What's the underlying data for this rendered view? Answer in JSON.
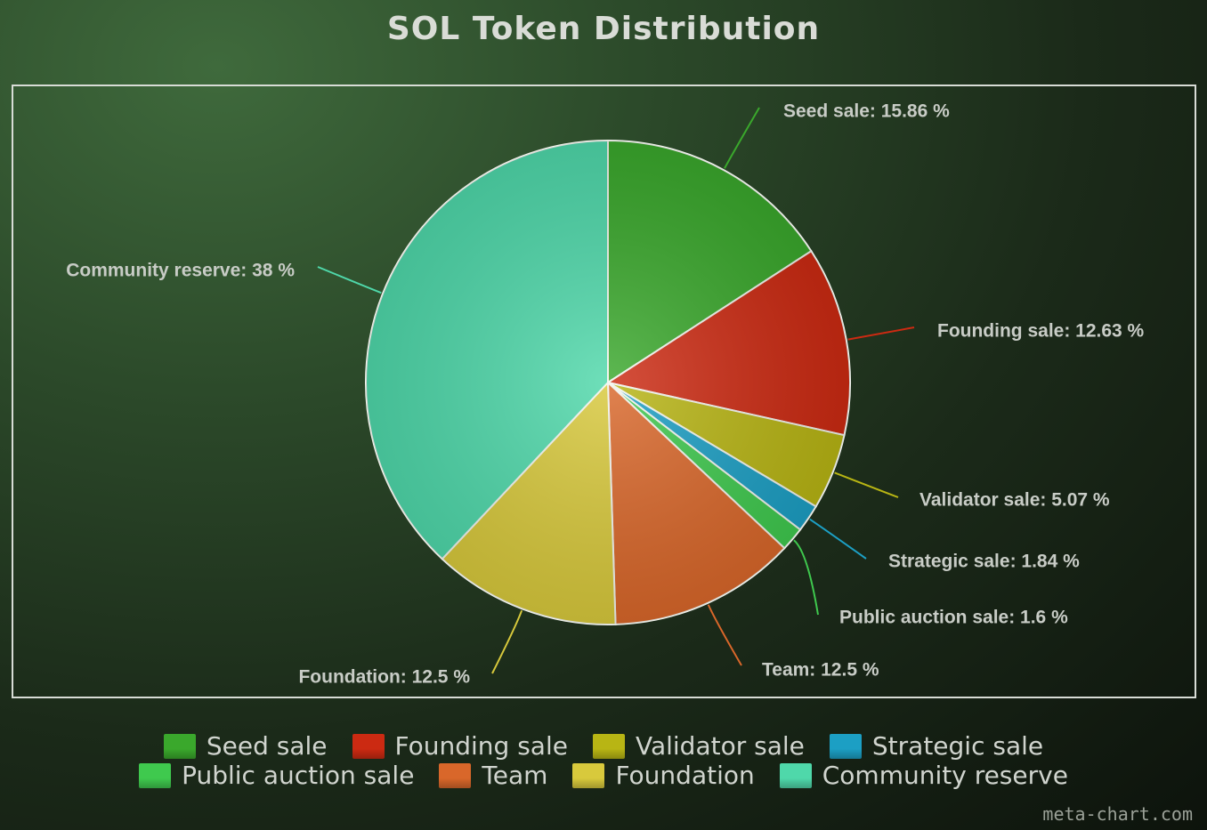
{
  "chart_data": {
    "type": "pie",
    "title": "SOL Token Distribution",
    "slices": [
      {
        "name": "Seed sale",
        "value": 15.86,
        "label": "Seed sale: 15.86 %",
        "color": "#3aa82c"
      },
      {
        "name": "Founding sale",
        "value": 12.63,
        "label": "Founding sale: 12.63 %",
        "color": "#cc2a12"
      },
      {
        "name": "Validator sale",
        "value": 5.07,
        "label": "Validator sale: 5.07 %",
        "color": "#b8b514"
      },
      {
        "name": "Strategic sale",
        "value": 1.84,
        "label": "Strategic sale: 1.84 %",
        "color": "#1c9fc4"
      },
      {
        "name": "Public auction sale",
        "value": 1.6,
        "label": "Public auction sale: 1.6 %",
        "color": "#3fc94e"
      },
      {
        "name": "Team",
        "value": 12.5,
        "label": "Team: 12.5 %",
        "color": "#d9672a"
      },
      {
        "name": "Foundation",
        "value": 12.5,
        "label": "Foundation: 12.5 %",
        "color": "#d8c93c"
      },
      {
        "name": "Community reserve",
        "value": 38,
        "label": "Community reserve: 38 %",
        "color": "#4fd8aa"
      }
    ],
    "legend": {
      "placement": "bottom"
    }
  },
  "watermark": "meta-chart.com"
}
